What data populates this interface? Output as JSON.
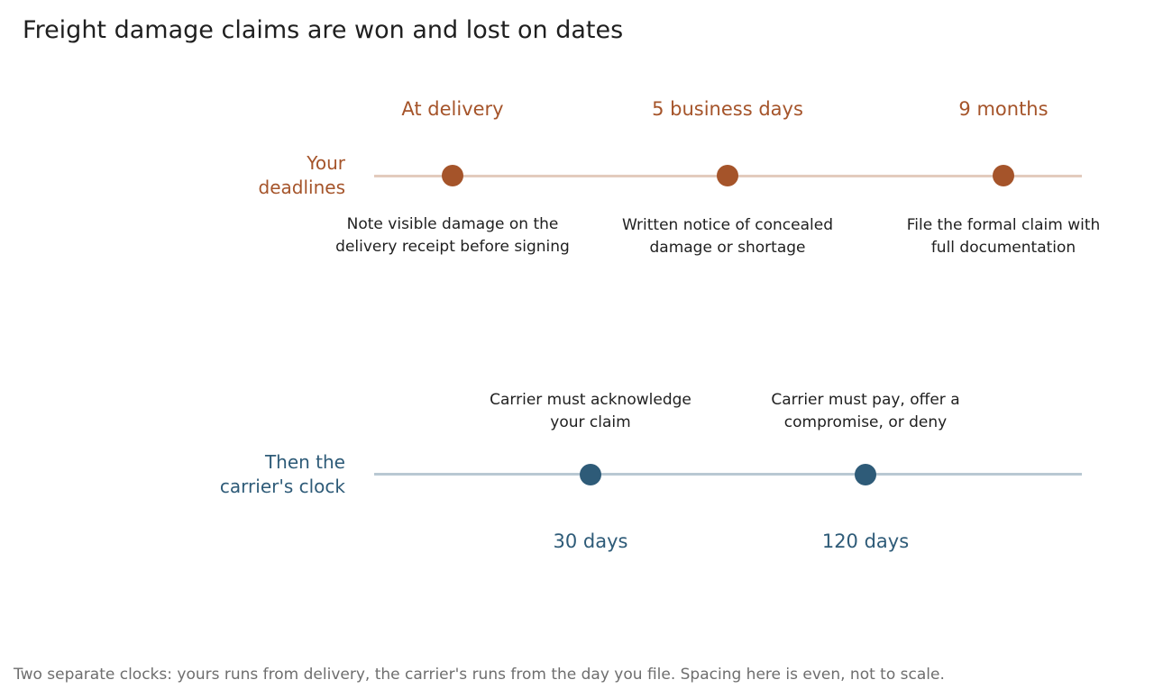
{
  "title": "Freight damage claims are won and lost on dates",
  "caption": "Two separate clocks: yours runs from delivery, the carrier's runs from the day you file. Spacing here is even, not to scale.",
  "colors": {
    "yours": "#a5542a",
    "yours_track": "#e3cbbd",
    "carrier": "#2e5b78",
    "carrier_track": "#b9c8d3"
  },
  "rows": {
    "yours": {
      "label_lines": [
        "Your",
        "deadlines"
      ],
      "milestones": [
        {
          "label": "At delivery",
          "note_lines": [
            "Note visible damage on the",
            "delivery receipt before signing"
          ]
        },
        {
          "label": "5 business days",
          "note_lines": [
            "Written notice of concealed",
            "damage or shortage"
          ]
        },
        {
          "label": "9 months",
          "note_lines": [
            "File the formal claim with",
            "full documentation"
          ]
        }
      ]
    },
    "carrier": {
      "label_lines": [
        "Then the",
        "carrier's clock"
      ],
      "milestones": [
        {
          "label": "30 days",
          "note_lines": [
            "Carrier must acknowledge",
            "your claim"
          ]
        },
        {
          "label": "120 days",
          "note_lines": [
            "Carrier must pay, offer a",
            "compromise, or deny"
          ]
        }
      ]
    }
  }
}
